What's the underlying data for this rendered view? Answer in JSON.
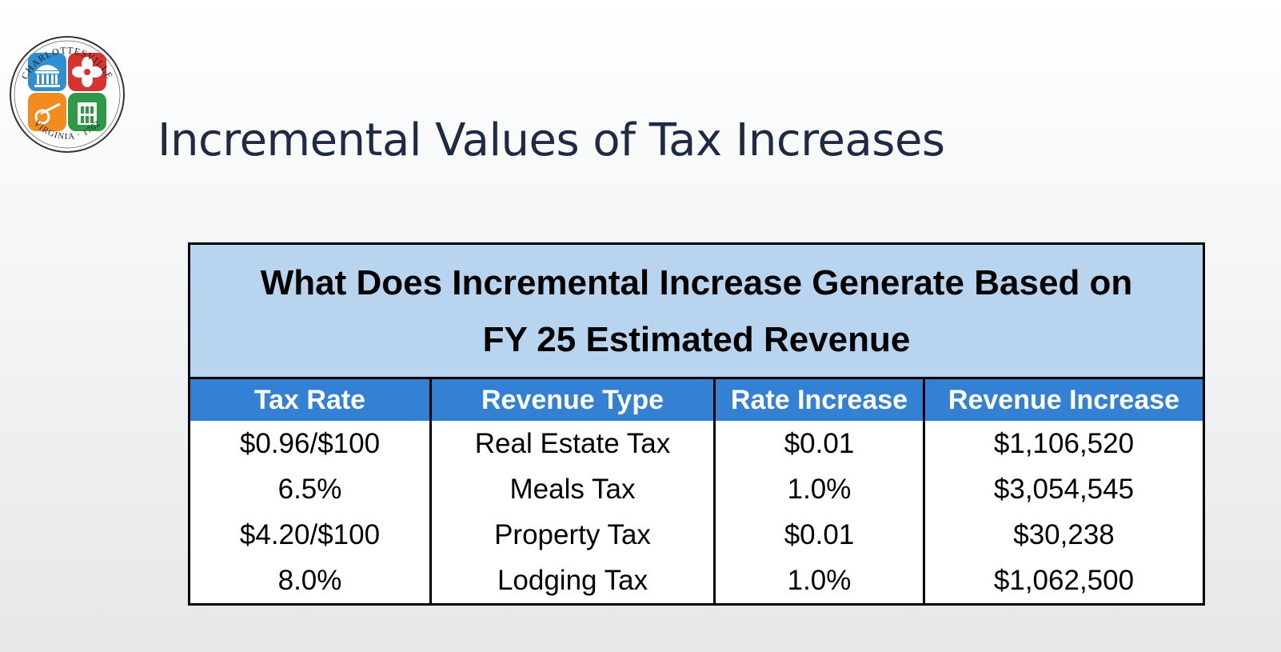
{
  "logo": {
    "ring_text_top": "CHARLOTTESVILLE",
    "ring_text_bottom": "VIRGINIA 1762",
    "colors": {
      "blue": "#2f8fd0",
      "red": "#d8322e",
      "orange": "#f28c1e",
      "green": "#2e9a48"
    }
  },
  "title": "Incremental Values of Tax Increases",
  "table": {
    "caption_lines": [
      "What Does Incremental Increase Generate Based on",
      "FY 25 Estimated Revenue"
    ],
    "headers": [
      "Tax Rate",
      "Revenue Type",
      "Rate Increase",
      "Revenue Increase"
    ],
    "rows": [
      [
        "$0.96/$100",
        "Real Estate Tax",
        "$0.01",
        "$1,106,520"
      ],
      [
        "6.5%",
        "Meals Tax",
        "1.0%",
        "$3,054,545"
      ],
      [
        "$4.20/$100",
        "Property Tax",
        "$0.01",
        "$30,238"
      ],
      [
        "8.0%",
        "Lodging Tax",
        "1.0%",
        "$1,062,500"
      ]
    ]
  },
  "colors": {
    "caption_bg": "#b9d4ef",
    "header_bg": "#3480d2",
    "title_color": "#1f2a44"
  }
}
